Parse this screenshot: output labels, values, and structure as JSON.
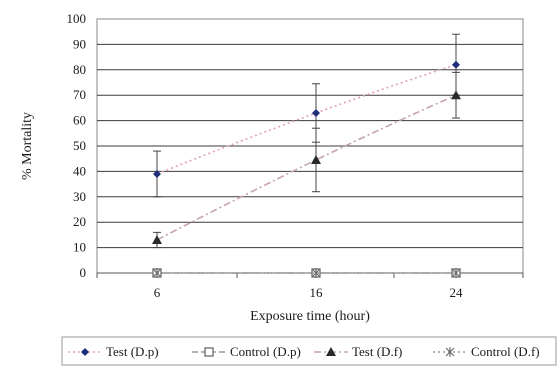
{
  "chart_data": {
    "type": "line",
    "title": "",
    "xlabel": "Exposure time (hour)",
    "ylabel": "% Mortality",
    "categories": [
      "6",
      "16",
      "24"
    ],
    "ylim": [
      0,
      100
    ],
    "yticks": [
      "0",
      "10",
      "20",
      "30",
      "40",
      "50",
      "60",
      "70",
      "80",
      "90",
      "100"
    ],
    "grid": true,
    "legend_position": "bottom",
    "series": [
      {
        "name": "Test (D.p)",
        "values": [
          39,
          63,
          82
        ],
        "errors": [
          9,
          11.5,
          12
        ],
        "marker": "diamond",
        "color": "#1f2f7a",
        "line": "#e2a0b8",
        "dash": "2,3",
        "trend": true
      },
      {
        "name": "Control (D.p)",
        "values": [
          0,
          0,
          0
        ],
        "errors": [
          0,
          0,
          0
        ],
        "marker": "square-open",
        "color": "#6b6b6b",
        "line": "#9a9a9a",
        "dash": "6,3"
      },
      {
        "name": "Test (D.f)",
        "values": [
          13,
          44.5,
          70
        ],
        "errors": [
          3,
          12.5,
          9
        ],
        "marker": "triangle",
        "color": "#2a2a2a",
        "line": "#c6a4ae",
        "dash": "7,3,2,3",
        "trend": true
      },
      {
        "name": "Control (D.f)",
        "values": [
          0,
          0,
          0
        ],
        "errors": [
          0,
          0,
          0
        ],
        "marker": "star",
        "color": "#6b6b6b",
        "line": "#9a9a9a",
        "dash": "2,3"
      }
    ]
  }
}
